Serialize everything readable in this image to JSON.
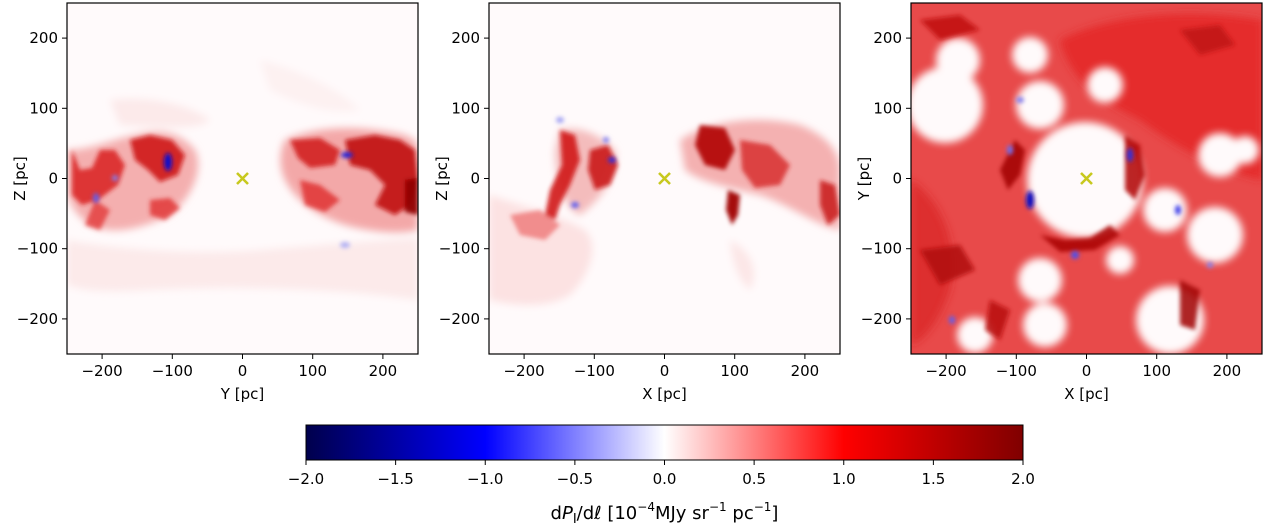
{
  "chart_data": [
    {
      "type": "heatmap",
      "title": "",
      "xlabel": "Y [pc]",
      "ylabel": "Z [pc]",
      "xlim": [
        -250,
        250
      ],
      "ylim": [
        -250,
        250
      ],
      "xticks": [
        -200,
        -100,
        0,
        100,
        200
      ],
      "yticks": [
        -200,
        -100,
        0,
        100,
        200
      ],
      "xtick_labels": [
        "−200",
        "−100",
        "0",
        "100",
        "200"
      ],
      "ytick_labels": [
        "−200",
        "−100",
        "0",
        "100",
        "200"
      ],
      "marker": {
        "symbol": "x",
        "x": 0,
        "y": 0,
        "color": "#c8c81e"
      },
      "value_range": [
        -2.0,
        2.0
      ]
    },
    {
      "type": "heatmap",
      "title": "",
      "xlabel": "X [pc]",
      "ylabel": "Z [pc]",
      "xlim": [
        -250,
        250
      ],
      "ylim": [
        -250,
        250
      ],
      "xticks": [
        -200,
        -100,
        0,
        100,
        200
      ],
      "yticks": [
        -200,
        -100,
        0,
        100,
        200
      ],
      "xtick_labels": [
        "−200",
        "−100",
        "0",
        "100",
        "200"
      ],
      "ytick_labels": [
        "−200",
        "−100",
        "0",
        "100",
        "200"
      ],
      "marker": {
        "symbol": "x",
        "x": 0,
        "y": 0,
        "color": "#c8c81e"
      },
      "value_range": [
        -2.0,
        2.0
      ]
    },
    {
      "type": "heatmap",
      "title": "",
      "xlabel": "X [pc]",
      "ylabel": "Y [pc]",
      "xlim": [
        -250,
        250
      ],
      "ylim": [
        -250,
        250
      ],
      "xticks": [
        -200,
        -100,
        0,
        100,
        200
      ],
      "yticks": [
        -200,
        -100,
        0,
        100,
        200
      ],
      "xtick_labels": [
        "−200",
        "−100",
        "0",
        "100",
        "200"
      ],
      "ytick_labels": [
        "−200",
        "−100",
        "0",
        "100",
        "200"
      ],
      "marker": {
        "symbol": "x",
        "x": 0,
        "y": 0,
        "color": "#c8c81e"
      },
      "value_range": [
        -2.0,
        2.0
      ]
    }
  ],
  "colorbar": {
    "colormap": "seismic",
    "colors": [
      "#00004c",
      "#0000ff",
      "#ffffff",
      "#ff0000",
      "#800000"
    ],
    "range": [
      -2.0,
      2.0
    ],
    "ticks": [
      -2.0,
      -1.5,
      -1.0,
      -0.5,
      0.0,
      0.5,
      1.0,
      1.5,
      2.0
    ],
    "tick_labels": [
      "−2.0",
      "−1.5",
      "−1.0",
      "−0.5",
      "0.0",
      "0.5",
      "1.0",
      "1.5",
      "2.0"
    ],
    "label": "dPI/dℓ [10⁻⁴MJy sr⁻¹ pc⁻¹]",
    "label_parts": {
      "d1": "d",
      "P": "P",
      "sub": "I",
      "d2": "/d",
      "ell": "ℓ",
      "bracket_open": " [10",
      "exp1": "−4",
      "unit1": "MJy sr",
      "exp2": "−1",
      "unit2": " pc",
      "exp3": "−1",
      "bracket_close": "]"
    }
  }
}
